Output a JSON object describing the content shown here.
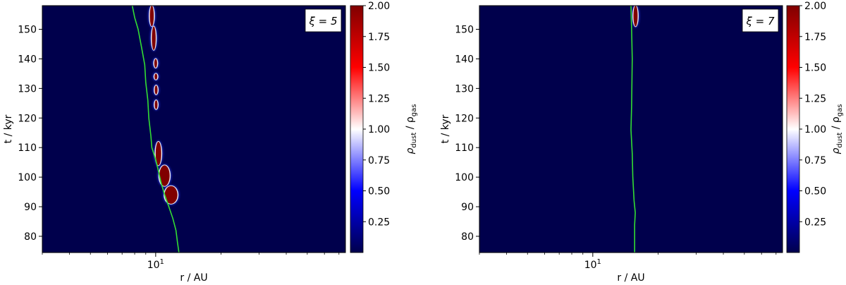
{
  "chart_data": [
    {
      "type": "heatmap",
      "panel_label": "ξ = 5",
      "xlabel": "r / AU",
      "ylabel": "t / kyr",
      "x_scale": "log",
      "x_range_au": [
        3.0,
        75.0
      ],
      "x_ticks": [
        {
          "value": 10,
          "base": "10",
          "exp": "1"
        }
      ],
      "y_range_kyr": [
        74.5,
        158
      ],
      "y_ticks": [
        80,
        90,
        100,
        110,
        120,
        130,
        140,
        150
      ],
      "colorbar": {
        "label_main": "ρ",
        "label_sub1": "dust",
        "label_sep": " / ρ",
        "label_sub2": "gas",
        "range": [
          0.0,
          2.0
        ],
        "ticks": [
          "0.25",
          "0.50",
          "0.75",
          "1.00",
          "1.25",
          "1.50",
          "1.75",
          "2.00"
        ],
        "colormap": "seismic"
      },
      "colors": {
        "background_low": "#00004c",
        "midpoint": "#ffffff",
        "high": "#800000",
        "line": "#33dd33"
      },
      "line_trace": [
        [
          12.8,
          74.5
        ],
        [
          12.6,
          78
        ],
        [
          12.4,
          82
        ],
        [
          12.0,
          86
        ],
        [
          11.5,
          90
        ],
        [
          11.0,
          94
        ],
        [
          10.6,
          98
        ],
        [
          10.3,
          102
        ],
        [
          10.0,
          106
        ],
        [
          9.6,
          110
        ],
        [
          9.5,
          114
        ],
        [
          9.3,
          120
        ],
        [
          9.2,
          126
        ],
        [
          9.0,
          132
        ],
        [
          8.9,
          138
        ],
        [
          8.6,
          144
        ],
        [
          8.3,
          150
        ],
        [
          8.0,
          154
        ],
        [
          7.8,
          158
        ]
      ],
      "dust_features": [
        {
          "r0": 9.4,
          "r1": 9.8,
          "t0": 151,
          "t1": 158
        },
        {
          "r0": 9.6,
          "r1": 10.0,
          "t0": 143,
          "t1": 151
        },
        {
          "r0": 9.9,
          "r1": 10.1,
          "t0": 137,
          "t1": 140
        },
        {
          "r0": 9.9,
          "r1": 10.15,
          "t0": 133,
          "t1": 135
        },
        {
          "r0": 9.9,
          "r1": 10.2,
          "t0": 128,
          "t1": 131
        },
        {
          "r0": 9.9,
          "r1": 10.2,
          "t0": 123,
          "t1": 126
        },
        {
          "r0": 10.0,
          "r1": 10.6,
          "t0": 104,
          "t1": 112
        },
        {
          "r0": 10.4,
          "r1": 11.6,
          "t0": 97,
          "t1": 104
        },
        {
          "r0": 11.0,
          "r1": 12.6,
          "t0": 91,
          "t1": 97
        }
      ]
    },
    {
      "type": "heatmap",
      "panel_label": "ξ = 7",
      "xlabel": "r / AU",
      "ylabel": "t / kyr",
      "x_scale": "log",
      "x_range_au": [
        3.0,
        75.0
      ],
      "x_ticks": [
        {
          "value": 10,
          "base": "10",
          "exp": "1"
        }
      ],
      "y_range_kyr": [
        74.5,
        158
      ],
      "y_ticks": [
        80,
        90,
        100,
        110,
        120,
        130,
        140,
        150
      ],
      "colorbar": {
        "label_main": "ρ",
        "label_sub1": "dust",
        "label_sep": " / ρ",
        "label_sub2": "gas",
        "range": [
          0.0,
          2.0
        ],
        "ticks": [
          "0.25",
          "0.50",
          "0.75",
          "1.00",
          "1.25",
          "1.50",
          "1.75",
          "2.00"
        ],
        "colormap": "seismic"
      },
      "colors": {
        "background_low": "#00004c",
        "midpoint": "#ffffff",
        "high": "#800000",
        "line": "#33dd33"
      },
      "line_trace": [
        [
          15.6,
          74.5
        ],
        [
          15.6,
          84
        ],
        [
          15.7,
          88
        ],
        [
          15.5,
          92
        ],
        [
          15.3,
          100
        ],
        [
          15.2,
          108
        ],
        [
          15.0,
          116
        ],
        [
          15.1,
          124
        ],
        [
          15.2,
          140
        ],
        [
          15.1,
          150
        ],
        [
          15.0,
          158
        ]
      ],
      "dust_features": [
        {
          "r0": 15.4,
          "r1": 16.1,
          "t0": 151,
          "t1": 158
        }
      ]
    }
  ]
}
